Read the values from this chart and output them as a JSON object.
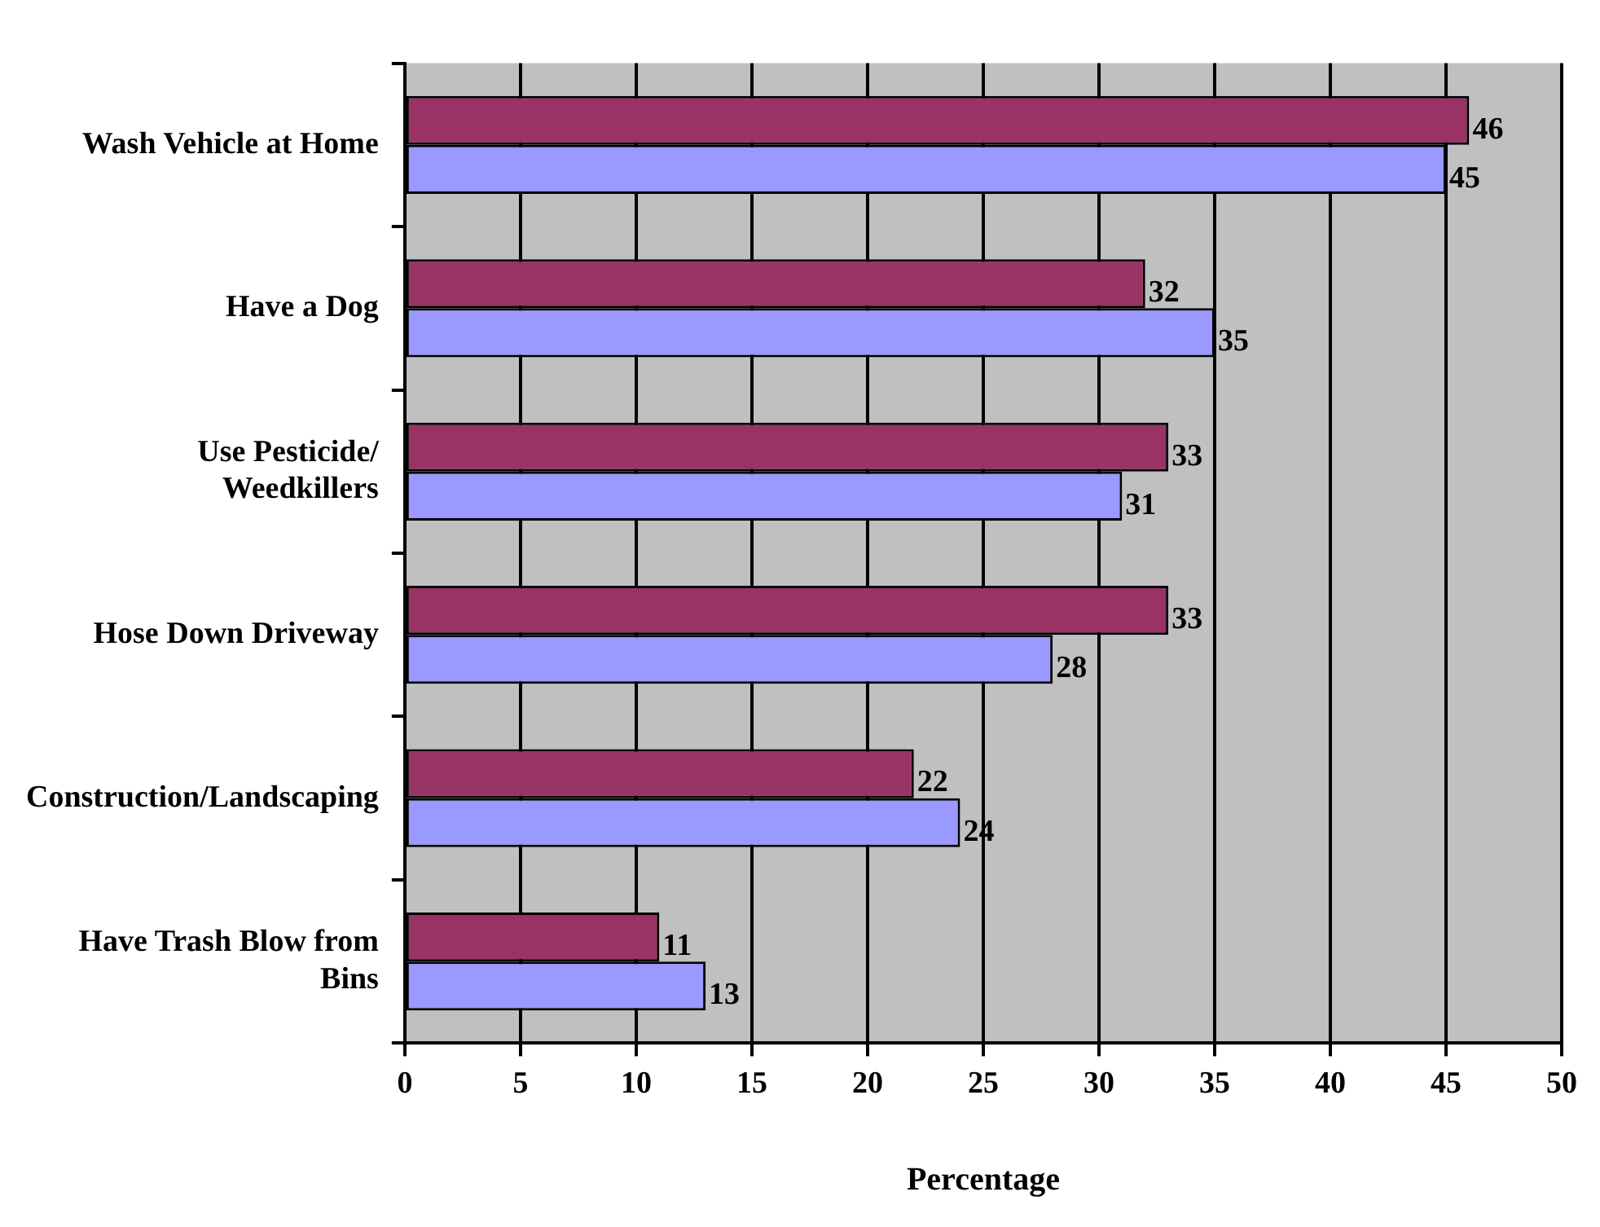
{
  "chart_data": {
    "type": "bar",
    "orientation": "horizontal",
    "xlabel": "Percentage",
    "categories": [
      "Wash Vehicle at Home",
      "Have a Dog",
      "Use Pesticide/\nWeedkillers",
      "Hose Down Driveway",
      "Construction/Landscaping",
      "Have Trash Blow from\nBins"
    ],
    "series": [
      {
        "color": "#993366",
        "values": [
          46,
          32,
          33,
          33,
          22,
          11
        ]
      },
      {
        "color": "#9999ff",
        "values": [
          45,
          35,
          31,
          28,
          24,
          13
        ]
      }
    ],
    "xlim": [
      0,
      50
    ],
    "xticks": [
      0,
      5,
      10,
      15,
      20,
      25,
      30,
      35,
      40,
      45,
      50
    ],
    "grid": "x",
    "data_labels": true,
    "legend": false
  }
}
